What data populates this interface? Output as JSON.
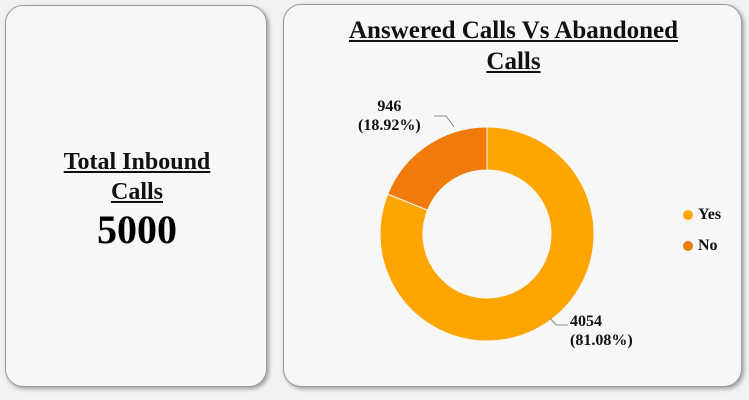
{
  "kpi": {
    "title_line1": "Total Inbound",
    "title_line2": "Calls",
    "value": "5000"
  },
  "chart": {
    "title_line1": "Answered Calls Vs Abandoned",
    "title_line2": "Calls"
  },
  "chart_data": {
    "type": "pie",
    "variant": "donut",
    "title": "Answered Calls Vs Abandoned Calls",
    "categories": [
      "Yes",
      "No"
    ],
    "values": [
      4054,
      946
    ],
    "percent_labels": [
      "(81.08%)",
      "(18.92%)"
    ],
    "value_labels": [
      "4054",
      "946"
    ],
    "colors": [
      "#FFA500",
      "#F07A0A"
    ],
    "legend_position": "right"
  },
  "colors": {
    "yes": "#FFA500",
    "no": "#F07A0A",
    "background": "#F7F7F7"
  }
}
